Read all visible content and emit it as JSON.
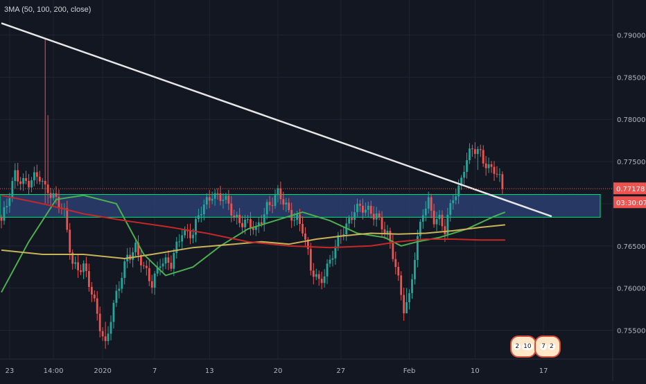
{
  "legend": {
    "text": "3MA (50, 100, 200, close)"
  },
  "colors": {
    "background": "#131722",
    "grid": "#1f2430",
    "bull": "#26a69a",
    "bear": "#ef5350",
    "ma50": "#4caf50",
    "ma100": "#c9b458",
    "ma200": "#c62828",
    "trendline": "#e6e6e6",
    "zone_fill": "#2c3e70",
    "zone_border": "#00e676",
    "price_line": "#ef5350"
  },
  "badges": [
    {
      "left": "2",
      "right": "10"
    },
    {
      "left": "7",
      "right": "2"
    }
  ],
  "chart_data": {
    "type": "candlestick",
    "title": "",
    "y_axis_side": "right",
    "ylim": [
      0.752,
      0.793
    ],
    "y_ticks": [
      "0.79000",
      "0.78500",
      "0.78000",
      "0.77500",
      "0.77000",
      "0.76500",
      "0.76000",
      "0.75500"
    ],
    "y_tick_values": [
      0.79,
      0.785,
      0.78,
      0.775,
      0.77,
      0.765,
      0.76,
      0.755
    ],
    "x_ticks": [
      "23",
      "14:00",
      "2020",
      "7",
      "13",
      "20",
      "27",
      "Feb",
      "10",
      "17"
    ],
    "x_tick_index": [
      3,
      19,
      37,
      56,
      76,
      101,
      124,
      149,
      173,
      198
    ],
    "bar_count": 220,
    "current_price": {
      "value": 0.77178,
      "label": "0.77178",
      "countdown": "03:30:07"
    },
    "support_zone": {
      "top": 0.7711,
      "bottom": 0.7684
    },
    "trendline": {
      "from": {
        "index": 0,
        "price": 0.7914
      },
      "to": {
        "index": 201,
        "price": 0.7685
      }
    },
    "close_anchors": [
      [
        0,
        0.768
      ],
      [
        2,
        0.7695
      ],
      [
        5,
        0.7735
      ],
      [
        10,
        0.7725
      ],
      [
        14,
        0.773
      ],
      [
        16,
        0.772
      ],
      [
        17,
        0.772
      ],
      [
        18,
        0.7715
      ],
      [
        20,
        0.7705
      ],
      [
        23,
        0.7685
      ],
      [
        26,
        0.763
      ],
      [
        30,
        0.7625
      ],
      [
        34,
        0.758
      ],
      [
        38,
        0.7535
      ],
      [
        40,
        0.7565
      ],
      [
        43,
        0.76
      ],
      [
        46,
        0.764
      ],
      [
        49,
        0.765
      ],
      [
        52,
        0.762
      ],
      [
        55,
        0.7605
      ],
      [
        58,
        0.7635
      ],
      [
        62,
        0.7625
      ],
      [
        66,
        0.767
      ],
      [
        70,
        0.7665
      ],
      [
        73,
        0.769
      ],
      [
        77,
        0.7715
      ],
      [
        81,
        0.7705
      ],
      [
        85,
        0.7685
      ],
      [
        89,
        0.768
      ],
      [
        93,
        0.7665
      ],
      [
        97,
        0.77
      ],
      [
        101,
        0.771
      ],
      [
        105,
        0.769
      ],
      [
        108,
        0.7685
      ],
      [
        110,
        0.767
      ],
      [
        113,
        0.762
      ],
      [
        116,
        0.761
      ],
      [
        119,
        0.7625
      ],
      [
        122,
        0.7645
      ],
      [
        125,
        0.767
      ],
      [
        129,
        0.7695
      ],
      [
        133,
        0.769
      ],
      [
        137,
        0.769
      ],
      [
        141,
        0.766
      ],
      [
        144,
        0.7625
      ],
      [
        147,
        0.758
      ],
      [
        149,
        0.759
      ],
      [
        151,
        0.7635
      ],
      [
        154,
        0.769
      ],
      [
        156,
        0.7705
      ],
      [
        158,
        0.7685
      ],
      [
        160,
        0.768
      ],
      [
        162,
        0.7665
      ],
      [
        165,
        0.771
      ],
      [
        167,
        0.772
      ],
      [
        169,
        0.7745
      ],
      [
        172,
        0.7762
      ],
      [
        175,
        0.776
      ],
      [
        178,
        0.7745
      ],
      [
        180,
        0.774
      ],
      [
        182,
        0.7725
      ],
      [
        183,
        0.77178
      ]
    ],
    "wick_spikes": [
      {
        "index": 16,
        "high": 0.7895,
        "low": 0.77
      },
      {
        "index": 17,
        "high": 0.7805,
        "low": 0.77
      },
      {
        "index": 38,
        "high": 0.756,
        "low": 0.7528
      },
      {
        "index": 148,
        "high": 0.76,
        "low": 0.7573
      },
      {
        "index": 174,
        "high": 0.7768,
        "low": 0.774
      }
    ],
    "ma_series": [
      {
        "period": 50,
        "color": "#4caf50",
        "values": [
          [
            0,
            0.7595
          ],
          [
            10,
            0.7655
          ],
          [
            20,
            0.7705
          ],
          [
            30,
            0.771
          ],
          [
            42,
            0.77
          ],
          [
            52,
            0.764
          ],
          [
            60,
            0.7615
          ],
          [
            70,
            0.7625
          ],
          [
            80,
            0.765
          ],
          [
            90,
            0.767
          ],
          [
            100,
            0.768
          ],
          [
            110,
            0.769
          ],
          [
            120,
            0.768
          ],
          [
            130,
            0.7665
          ],
          [
            140,
            0.766
          ],
          [
            146,
            0.765
          ],
          [
            152,
            0.7655
          ],
          [
            160,
            0.766
          ],
          [
            170,
            0.767
          ],
          [
            180,
            0.7685
          ],
          [
            184,
            0.769
          ]
        ]
      },
      {
        "period": 100,
        "color": "#c9b458",
        "values": [
          [
            0,
            0.7645
          ],
          [
            15,
            0.764
          ],
          [
            30,
            0.764
          ],
          [
            45,
            0.7635
          ],
          [
            55,
            0.764
          ],
          [
            70,
            0.7648
          ],
          [
            85,
            0.7652
          ],
          [
            95,
            0.7655
          ],
          [
            105,
            0.7652
          ],
          [
            115,
            0.7658
          ],
          [
            125,
            0.7662
          ],
          [
            135,
            0.7665
          ],
          [
            145,
            0.7664
          ],
          [
            155,
            0.7665
          ],
          [
            165,
            0.7668
          ],
          [
            175,
            0.7672
          ],
          [
            184,
            0.7675
          ]
        ]
      },
      {
        "period": 200,
        "color": "#c62828",
        "values": [
          [
            0,
            0.771
          ],
          [
            15,
            0.77
          ],
          [
            30,
            0.7688
          ],
          [
            45,
            0.768
          ],
          [
            60,
            0.7673
          ],
          [
            75,
            0.7665
          ],
          [
            90,
            0.7655
          ],
          [
            105,
            0.765
          ],
          [
            120,
            0.7648
          ],
          [
            135,
            0.765
          ],
          [
            145,
            0.7655
          ],
          [
            155,
            0.7658
          ],
          [
            165,
            0.7658
          ],
          [
            175,
            0.7657
          ],
          [
            184,
            0.7657
          ]
        ]
      }
    ]
  }
}
